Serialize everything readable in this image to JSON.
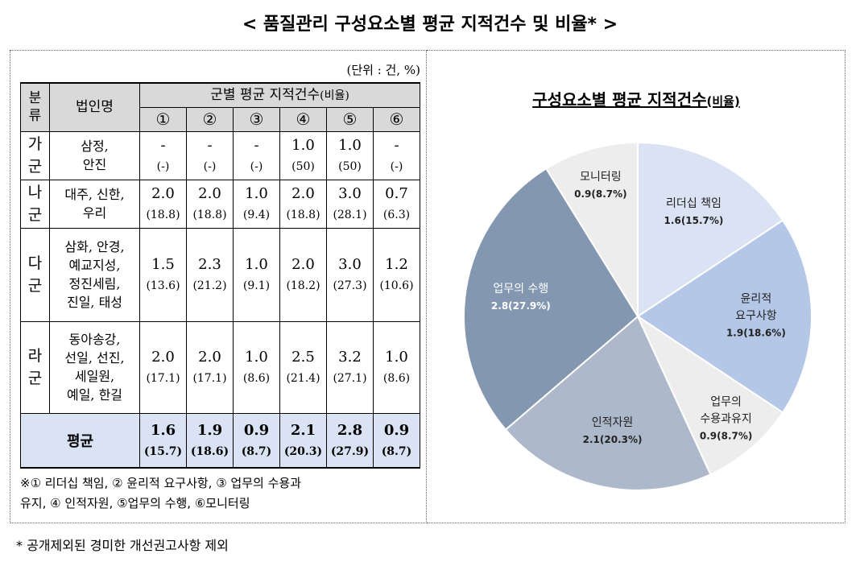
{
  "title": "< 품질관리 구성요소별 평균 지적건수 및 비율* >",
  "unit": "(단위 : 건, %)",
  "table": {
    "header": {
      "group_col": "분\n류",
      "name_col": "법인명",
      "metric": "군별 평균 지적건수",
      "metric_unit": "(비율)",
      "columns": [
        "①",
        "②",
        "③",
        "④",
        "⑤",
        "⑥"
      ]
    },
    "rows": [
      {
        "group": "가\n군",
        "companies": "삼정,\n안진",
        "counts": [
          "-",
          "-",
          "-",
          "1.0",
          "1.0",
          "-"
        ],
        "ratios": [
          "(-)",
          "(-)",
          "(-)",
          "(50)",
          "(50)",
          "(-)"
        ]
      },
      {
        "group": "나\n군",
        "companies": "대주, 신한,\n우리",
        "counts": [
          "2.0",
          "2.0",
          "1.0",
          "2.0",
          "3.0",
          "0.7"
        ],
        "ratios": [
          "(18.8)",
          "(18.8)",
          "(9.4)",
          "(18.8)",
          "(28.1)",
          "(6.3)"
        ]
      },
      {
        "group": "다\n군",
        "companies": "삼화, 안경,\n예교지성,\n정진세림,\n진일, 태성",
        "counts": [
          "1.5",
          "2.3",
          "1.0",
          "2.0",
          "3.0",
          "1.2"
        ],
        "ratios": [
          "(13.6)",
          "(21.2)",
          "(9.1)",
          "(18.2)",
          "(27.3)",
          "(10.6)"
        ]
      },
      {
        "group": "라\n군",
        "companies": "동아송강,\n선일, 선진,\n세일원,\n예일, 한길",
        "counts": [
          "2.0",
          "2.0",
          "1.0",
          "2.5",
          "3.2",
          "1.0"
        ],
        "ratios": [
          "(17.1)",
          "(17.1)",
          "(8.6)",
          "(21.4)",
          "(27.1)",
          "(8.6)"
        ]
      }
    ],
    "average": {
      "label": "평균",
      "counts": [
        "1.6",
        "1.9",
        "0.9",
        "2.1",
        "2.8",
        "0.9"
      ],
      "ratios": [
        "(15.7)",
        "(18.6)",
        "(8.7)",
        "(20.3)",
        "(27.9)",
        "(8.7)"
      ]
    },
    "note": "※① 리더십 책임, ② 윤리적 요구사항, ③ 업무의 수용과\n유지, ④ 인적자원, ⑤업무의 수행, ⑥모니터링"
  },
  "chart_data": {
    "type": "pie",
    "title": "구성요소별 평균 지적건수",
    "title_unit": "(비율)",
    "categories": [
      "리더십 책임",
      "윤리적\n요구사항",
      "업무의\n수용과유지",
      "인적자원",
      "업무의 수행",
      "모니터링"
    ],
    "values": [
      1.6,
      1.9,
      0.9,
      2.1,
      2.8,
      0.9
    ],
    "value_labels": [
      "1.6(15.7%)",
      "1.9(18.6%)",
      "0.9(8.7%)",
      "2.1(20.3%)",
      "2.8(27.9%)",
      "0.9(8.7%)"
    ],
    "colors": [
      "#dae3f3",
      "#b4c7e7",
      "#ededed",
      "#adb9ca",
      "#8497b0",
      "#ededed"
    ]
  },
  "footnote": "* 공개제외된 경미한 개선권고사항 제외"
}
